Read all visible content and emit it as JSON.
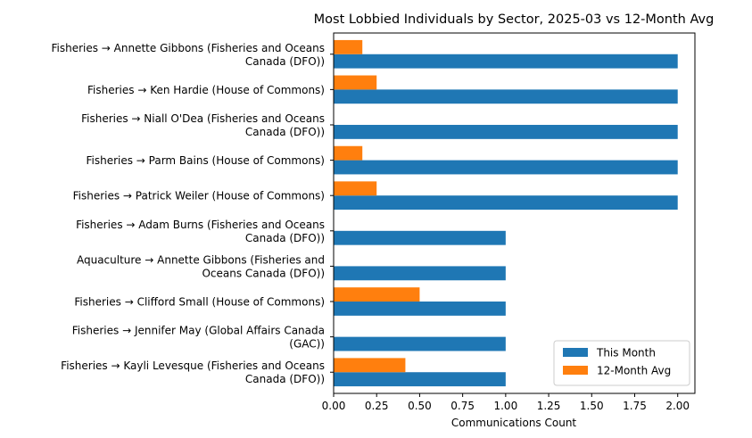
{
  "chart_data": {
    "type": "bar",
    "orientation": "horizontal",
    "title": "Most Lobbied Individuals by Sector, 2025-03 vs 12-Month Avg",
    "xlabel": "Communications Count",
    "ylabel": "",
    "xlim": [
      0,
      2.1
    ],
    "xticks": [
      0.0,
      0.25,
      0.5,
      0.75,
      1.0,
      1.25,
      1.5,
      1.75,
      2.0
    ],
    "xtick_labels": [
      "0.00",
      "0.25",
      "0.50",
      "0.75",
      "1.00",
      "1.25",
      "1.50",
      "1.75",
      "2.00"
    ],
    "grid": false,
    "legend_position": "bottom-right",
    "categories": [
      [
        "Fisheries → Annette Gibbons (Fisheries and Oceans",
        "Canada (DFO))"
      ],
      [
        "Fisheries → Ken Hardie (House of Commons)"
      ],
      [
        "Fisheries → Niall O'Dea (Fisheries and Oceans",
        "Canada (DFO))"
      ],
      [
        "Fisheries → Parm Bains (House of Commons)"
      ],
      [
        "Fisheries → Patrick Weiler (House of Commons)"
      ],
      [
        "Fisheries → Adam Burns (Fisheries and Oceans",
        "Canada (DFO))"
      ],
      [
        "Aquaculture → Annette Gibbons (Fisheries and",
        "Oceans Canada (DFO))"
      ],
      [
        "Fisheries → Clifford Small (House of Commons)"
      ],
      [
        "Fisheries → Jennifer May (Global Affairs Canada",
        "(GAC))"
      ],
      [
        "Fisheries → Kayli  Levesque (Fisheries and Oceans",
        "Canada (DFO))"
      ]
    ],
    "series": [
      {
        "name": "This Month",
        "color": "#1f77b4",
        "values": [
          2,
          2,
          2,
          2,
          2,
          1,
          1,
          1,
          1,
          1
        ]
      },
      {
        "name": "12-Month Avg",
        "color": "#ff7f0e",
        "values": [
          0.167,
          0.25,
          0,
          0.167,
          0.25,
          0,
          0,
          0.5,
          0,
          0.417
        ]
      }
    ]
  }
}
